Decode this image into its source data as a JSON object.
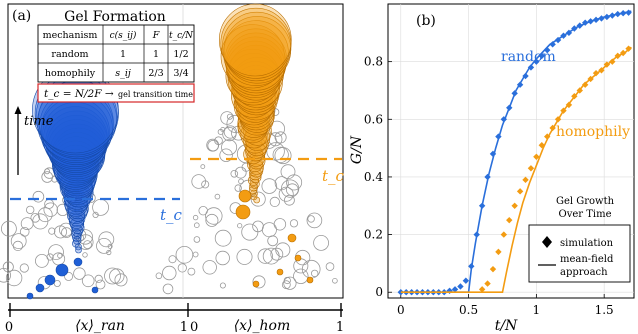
{
  "chart_data": [
    {
      "type": "scatter",
      "panel_label": "(a)",
      "table_title": "Gel Formation",
      "table": {
        "headers": [
          "mechanism",
          "c(s_ij)",
          "F",
          "t_c/N"
        ],
        "rows": [
          [
            "random",
            "1",
            "1",
            "1/2"
          ],
          [
            "homophily",
            "s_ij",
            "2/3",
            "3/4"
          ]
        ]
      },
      "formula_text": "t_c = N/2F →",
      "formula_note": "gel transition time",
      "time_label": "time",
      "tc_label_random": "t_c",
      "tc_label_homophily": "t_c",
      "xlabel_left": "⟨x⟩_ran",
      "xlabel_right": "⟨x⟩_hom",
      "xticks_left": [
        "0",
        "1"
      ],
      "xticks_right": [
        "0",
        "1"
      ],
      "colors": {
        "random": "#1f5fd6",
        "homophily": "#f39c12",
        "other": "#999999"
      }
    },
    {
      "type": "line",
      "panel_label": "(b)",
      "xlabel": "t/N",
      "ylabel": "G/N",
      "xlim": [
        -0.05,
        1.72
      ],
      "ylim": [
        -0.02,
        1.0
      ],
      "xticks": [
        0,
        0.5,
        1,
        1.5
      ],
      "xtick_labels": [
        "0",
        "0.5",
        "1",
        "1.5"
      ],
      "yticks": [
        0,
        0.2,
        0.4,
        0.6,
        0.8
      ],
      "ytick_labels": [
        "0",
        "0.2",
        "0.4",
        "0.6",
        "0.8"
      ],
      "inset_title": [
        "Gel Growth",
        "Over Time"
      ],
      "legend": [
        {
          "label": "simulation",
          "marker": "diamond"
        },
        {
          "label": [
            "mean-field",
            "approach"
          ],
          "marker": "line"
        }
      ],
      "series": [
        {
          "name": "random",
          "color": "#2a6fdb",
          "theory": {
            "x": [
              0,
              0.5,
              0.52,
              0.55,
              0.6,
              0.65,
              0.7,
              0.75,
              0.8,
              0.85,
              0.9,
              0.95,
              1.0,
              1.1,
              1.2,
              1.3,
              1.4,
              1.5,
              1.6,
              1.7
            ],
            "y": [
              0,
              0,
              0.08,
              0.17,
              0.3,
              0.41,
              0.5,
              0.58,
              0.64,
              0.7,
              0.74,
              0.78,
              0.81,
              0.86,
              0.89,
              0.92,
              0.94,
              0.955,
              0.965,
              0.975
            ]
          },
          "simulation": {
            "x": [
              0,
              0.04,
              0.08,
              0.12,
              0.16,
              0.2,
              0.24,
              0.28,
              0.32,
              0.36,
              0.4,
              0.44,
              0.48,
              0.52,
              0.56,
              0.6,
              0.64,
              0.68,
              0.72,
              0.76,
              0.8,
              0.84,
              0.88,
              0.92,
              0.96,
              1.0,
              1.04,
              1.08,
              1.12,
              1.16,
              1.2,
              1.24,
              1.28,
              1.32,
              1.36,
              1.4,
              1.44,
              1.48,
              1.52,
              1.56,
              1.6,
              1.64,
              1.68
            ],
            "y": [
              0,
              0,
              0,
              0,
              0,
              0,
              0,
              0,
              0,
              0.005,
              0.01,
              0.02,
              0.04,
              0.09,
              0.2,
              0.3,
              0.4,
              0.48,
              0.54,
              0.6,
              0.64,
              0.69,
              0.72,
              0.75,
              0.78,
              0.8,
              0.82,
              0.84,
              0.86,
              0.875,
              0.89,
              0.9,
              0.915,
              0.925,
              0.935,
              0.94,
              0.945,
              0.95,
              0.955,
              0.96,
              0.965,
              0.968,
              0.97
            ]
          },
          "label": "random"
        },
        {
          "name": "homophily",
          "color": "#f39c12",
          "theory": {
            "x": [
              0,
              0.75,
              0.78,
              0.82,
              0.86,
              0.9,
              0.95,
              1.0,
              1.05,
              1.1,
              1.15,
              1.2,
              1.25,
              1.3,
              1.35,
              1.4,
              1.45,
              1.5,
              1.55,
              1.6,
              1.65,
              1.7
            ],
            "y": [
              0,
              0,
              0.07,
              0.16,
              0.24,
              0.31,
              0.38,
              0.44,
              0.5,
              0.55,
              0.59,
              0.63,
              0.66,
              0.69,
              0.72,
              0.74,
              0.76,
              0.78,
              0.8,
              0.82,
              0.83,
              0.85
            ]
          },
          "simulation": {
            "x": [
              0.6,
              0.64,
              0.68,
              0.72,
              0.76,
              0.8,
              0.84,
              0.88,
              0.92,
              0.96,
              1.0,
              1.04,
              1.08,
              1.12,
              1.16,
              1.2,
              1.24,
              1.28,
              1.32,
              1.36,
              1.4,
              1.44,
              1.48,
              1.52,
              1.56,
              1.6,
              1.64,
              1.68
            ],
            "y": [
              0.01,
              0.03,
              0.08,
              0.14,
              0.2,
              0.25,
              0.3,
              0.35,
              0.39,
              0.43,
              0.47,
              0.51,
              0.54,
              0.57,
              0.6,
              0.63,
              0.65,
              0.68,
              0.7,
              0.72,
              0.74,
              0.76,
              0.77,
              0.79,
              0.8,
              0.82,
              0.83,
              0.845
            ]
          },
          "label": "homophily"
        }
      ]
    }
  ]
}
